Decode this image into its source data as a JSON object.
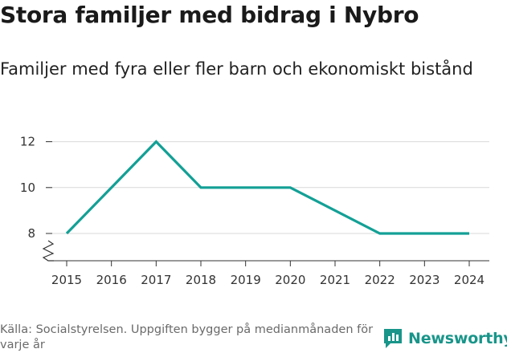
{
  "title": "Stora familjer med bidrag i Nybro",
  "subtitle": "Familjer med fyra eller fler barn och ekonomiskt bistånd",
  "source": "Källa: Socialstyrelsen. Uppgiften bygger på medianmånaden för varje år",
  "brand": "Newsworthy",
  "colors": {
    "line": "#13a096",
    "brand": "#19958a"
  },
  "chart_data": {
    "type": "line",
    "x": [
      "2015",
      "2016",
      "2017",
      "2018",
      "2019",
      "2020",
      "2021",
      "2022",
      "2023",
      "2024"
    ],
    "series": [
      {
        "values": [
          8,
          null,
          12,
          10,
          10,
          10,
          null,
          8,
          8,
          8
        ]
      }
    ],
    "yticks": [
      8,
      10,
      12
    ],
    "ylim": [
      7,
      13
    ],
    "grid": true,
    "axis_break": true
  }
}
